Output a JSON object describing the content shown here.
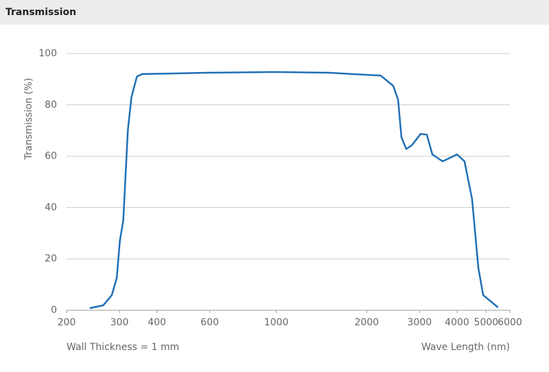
{
  "header": {
    "title": "Transmission"
  },
  "chart_data": {
    "type": "line",
    "y_label": "Transmission (%)",
    "x_label": "Wave Length (nm)",
    "annotation": "Wall Thickness = 1 mm",
    "x_scale": "log",
    "grid": true,
    "xlim": [
      200,
      6000
    ],
    "xticks": [
      200,
      300,
      400,
      600,
      1000,
      2000,
      3000,
      4000,
      5000,
      6000
    ],
    "ylim": [
      0,
      100
    ],
    "yticks": [
      0,
      20,
      40,
      60,
      80,
      100
    ],
    "x": [
      239,
      265,
      283,
      294,
      301,
      309,
      320,
      329,
      343,
      357,
      582,
      986,
      1502,
      2229,
      2452,
      2545,
      2611,
      2710,
      2825,
      3026,
      3172,
      3310,
      3581,
      4002,
      4236,
      4489,
      4710,
      4886,
      5478
    ],
    "series": [
      {
        "color": "#1f6fb5",
        "values": [
          0.8,
          1.9,
          5.9,
          12.6,
          27,
          35,
          70,
          83,
          91,
          92,
          92.5,
          92.8,
          92.5,
          91.4,
          87.4,
          82,
          67.4,
          62.8,
          64.2,
          68.7,
          68.4,
          60.7,
          58,
          60.7,
          58,
          43.3,
          16.6,
          5.9,
          1.1
        ]
      }
    ]
  }
}
